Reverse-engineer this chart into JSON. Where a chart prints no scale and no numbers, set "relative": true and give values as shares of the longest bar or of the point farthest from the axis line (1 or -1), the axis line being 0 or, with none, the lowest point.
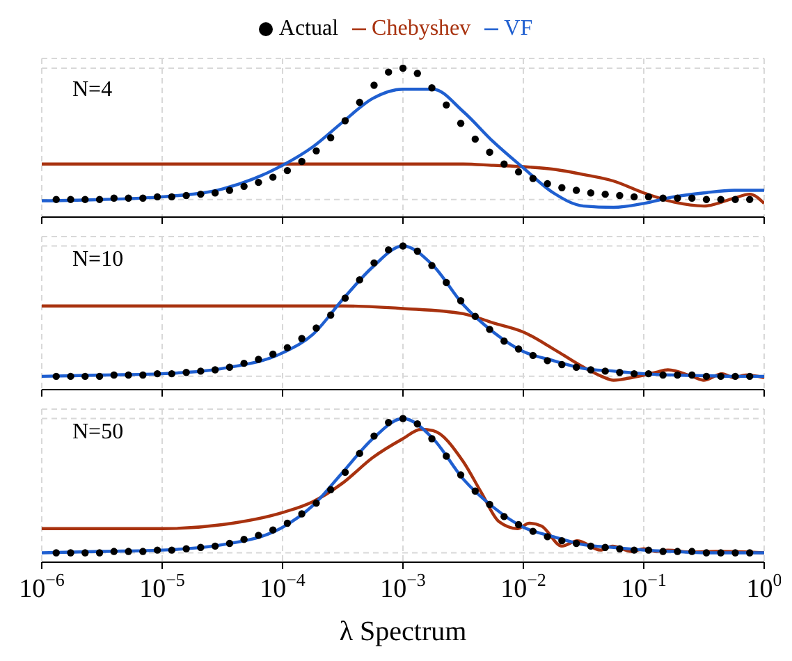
{
  "chart_data": [
    {
      "type": "line",
      "relative": true,
      "annotations": [
        "N=4"
      ],
      "legend": "top",
      "grid": true,
      "tick_labels": false,
      "log": "x",
      "xlim": [
        1e-06,
        1
      ],
      "xticks": [
        {
          "value": 1e-06,
          "label": null
        },
        {
          "value": 1e-05,
          "label": null
        },
        {
          "value": 0.0001,
          "label": null
        },
        {
          "value": 0.001,
          "label": null
        },
        {
          "value": 0.01,
          "label": null
        },
        {
          "value": 0.1,
          "label": null
        },
        {
          "value": 1,
          "label": null
        }
      ],
      "x": [
        1.318e-06,
        1.738e-06,
        2.291e-06,
        3.02e-06,
        3.981e-06,
        5.248e-06,
        6.918e-06,
        9.12e-06,
        1.202e-05,
        1.585e-05,
        2.089e-05,
        2.754e-05,
        3.631e-05,
        4.786e-05,
        6.31e-05,
        8.318e-05,
        0.0001096,
        0.0001445,
        0.0001905,
        0.0002512,
        0.0003311,
        0.0004365,
        0.0005754,
        0.0007586,
        0.001,
        0.001318,
        0.001738,
        0.002291,
        0.00302,
        0.003981,
        0.005248,
        0.006918,
        0.00912,
        0.01202,
        0.01585,
        0.02089,
        0.02754,
        0.03631,
        0.04786,
        0.0631,
        0.08318,
        0.1096,
        0.1445,
        0.1905,
        0.2512,
        0.3311,
        0.4365,
        0.5754,
        0.7586
      ],
      "series": [
        {
          "name": "Actual",
          "type": "scatter",
          "marker": "circle",
          "color": "#000000",
          "values": [
            0,
            0,
            0,
            0,
            0.01,
            0.01,
            0.01,
            0.02,
            0.02,
            0.03,
            0.04,
            0.05,
            0.07,
            0.1,
            0.13,
            0.17,
            0.22,
            0.29,
            0.37,
            0.47,
            0.6,
            0.74,
            0.87,
            0.97,
            1.0,
            0.96,
            0.85,
            0.72,
            0.58,
            0.46,
            0.36,
            0.27,
            0.21,
            0.16,
            0.12,
            0.09,
            0.07,
            0.05,
            0.04,
            0.03,
            0.02,
            0.02,
            0.01,
            0.01,
            0.01,
            0,
            0,
            0,
            0
          ]
        },
        {
          "name": "Chebyshev",
          "type": "line",
          "color": "#a8320f",
          "x": [
            1e-06,
            1e-05,
            0.0001,
            0.001,
            0.003162,
            0.005623,
            0.01,
            0.01778,
            0.03162,
            0.05623,
            0.1,
            0.1778,
            0.3162,
            0.5623,
            0.7586,
            1
          ],
          "values": [
            0.27,
            0.27,
            0.27,
            0.27,
            0.27,
            0.26,
            0.25,
            0.23,
            0.19,
            0.14,
            0.05,
            -0.02,
            -0.05,
            0.01,
            0.04,
            -0.03
          ]
        },
        {
          "name": "VF",
          "type": "line",
          "color": "#1f5fd0",
          "x": [
            1e-06,
            3.162e-06,
            1e-05,
            3.162e-05,
            0.0001,
            0.0001778,
            0.0003162,
            0.0005623,
            0.001,
            0.001778,
            0.003162,
            0.005623,
            0.01,
            0.01778,
            0.03162,
            0.05623,
            0.1,
            0.1778,
            0.3162,
            0.5623,
            1
          ],
          "values": [
            -0.01,
            0,
            0.02,
            0.08,
            0.26,
            0.4,
            0.59,
            0.77,
            0.84,
            0.84,
            0.67,
            0.44,
            0.24,
            0.05,
            -0.05,
            -0.06,
            -0.03,
            0.02,
            0.05,
            0.07,
            0.07
          ]
        }
      ]
    },
    {
      "type": "line",
      "relative": true,
      "annotations": [
        "N=10"
      ],
      "grid": true,
      "tick_labels": false,
      "log": "x",
      "xlim": [
        1e-06,
        1
      ],
      "xticks": [
        {
          "value": 1e-06,
          "label": null
        },
        {
          "value": 1e-05,
          "label": null
        },
        {
          "value": 0.0001,
          "label": null
        },
        {
          "value": 0.001,
          "label": null
        },
        {
          "value": 0.01,
          "label": null
        },
        {
          "value": 0.1,
          "label": null
        },
        {
          "value": 1,
          "label": null
        }
      ],
      "x": [
        1.318e-06,
        1.738e-06,
        2.291e-06,
        3.02e-06,
        3.981e-06,
        5.248e-06,
        6.918e-06,
        9.12e-06,
        1.202e-05,
        1.585e-05,
        2.089e-05,
        2.754e-05,
        3.631e-05,
        4.786e-05,
        6.31e-05,
        8.318e-05,
        0.0001096,
        0.0001445,
        0.0001905,
        0.0002512,
        0.0003311,
        0.0004365,
        0.0005754,
        0.0007586,
        0.001,
        0.001318,
        0.001738,
        0.002291,
        0.00302,
        0.003981,
        0.005248,
        0.006918,
        0.00912,
        0.01202,
        0.01585,
        0.02089,
        0.02754,
        0.03631,
        0.04786,
        0.0631,
        0.08318,
        0.1096,
        0.1445,
        0.1905,
        0.2512,
        0.3311,
        0.4365,
        0.5754,
        0.7586
      ],
      "series": [
        {
          "type": "scatter",
          "marker": "circle",
          "color": "#000000",
          "values": [
            0,
            0,
            0,
            0,
            0.01,
            0.01,
            0.01,
            0.02,
            0.02,
            0.03,
            0.04,
            0.05,
            0.07,
            0.1,
            0.13,
            0.17,
            0.22,
            0.29,
            0.37,
            0.47,
            0.6,
            0.74,
            0.87,
            0.97,
            1.0,
            0.96,
            0.85,
            0.72,
            0.58,
            0.46,
            0.36,
            0.27,
            0.21,
            0.16,
            0.12,
            0.09,
            0.07,
            0.05,
            0.04,
            0.03,
            0.02,
            0.02,
            0.01,
            0.01,
            0.01,
            0,
            0,
            0,
            0
          ]
        },
        {
          "type": "line",
          "color": "#a8320f",
          "x": [
            1e-06,
            1e-05,
            0.0001,
            0.0003162,
            0.001,
            0.003162,
            0.005623,
            0.01,
            0.01778,
            0.03162,
            0.04467,
            0.05623,
            0.07943,
            0.1259,
            0.1585,
            0.2512,
            0.3162,
            0.4467,
            0.5623,
            0.7079,
            1
          ],
          "values": [
            0.54,
            0.54,
            0.54,
            0.54,
            0.52,
            0.48,
            0.41,
            0.34,
            0.21,
            0.07,
            0,
            -0.03,
            -0.01,
            0.03,
            0.05,
            0,
            -0.03,
            0.02,
            -0.01,
            0.01,
            -0.01
          ]
        },
        {
          "type": "line",
          "color": "#1f5fd0",
          "x": [
            1e-06,
            3.162e-06,
            1e-05,
            3.162e-05,
            0.0001,
            0.0001778,
            0.0003162,
            0.0005623,
            0.001,
            0.001778,
            0.003162,
            0.005623,
            0.01,
            0.01778,
            0.03162,
            0.05623,
            0.1,
            0.1778,
            0.3162,
            0.5623,
            1
          ],
          "values": [
            0,
            0.01,
            0.02,
            0.06,
            0.18,
            0.32,
            0.59,
            0.84,
            1.0,
            0.85,
            0.55,
            0.34,
            0.19,
            0.12,
            0.06,
            0.04,
            0.02,
            0.01,
            0.005,
            0,
            0
          ]
        }
      ]
    },
    {
      "type": "line",
      "relative": true,
      "annotations": [
        "N=50"
      ],
      "grid": true,
      "tick_labels": "x",
      "log": "x",
      "xlim": [
        1e-06,
        1
      ],
      "xlabel": "λ Spectrum",
      "xticks": [
        {
          "value": 1e-06,
          "label": "10$^{−6}$"
        },
        {
          "value": 1e-05,
          "label": "10$^{−5}$"
        },
        {
          "value": 0.0001,
          "label": "10$^{−4}$"
        },
        {
          "value": 0.001,
          "label": "10$^{−3}$"
        },
        {
          "value": 0.01,
          "label": "10$^{−2}$"
        },
        {
          "value": 0.1,
          "label": "10$^{−1}$"
        },
        {
          "value": 1,
          "label": "10$^{0}$"
        }
      ],
      "x": [
        1.318e-06,
        1.738e-06,
        2.291e-06,
        3.02e-06,
        3.981e-06,
        5.248e-06,
        6.918e-06,
        9.12e-06,
        1.202e-05,
        1.585e-05,
        2.089e-05,
        2.754e-05,
        3.631e-05,
        4.786e-05,
        6.31e-05,
        8.318e-05,
        0.0001096,
        0.0001445,
        0.0001905,
        0.0002512,
        0.0003311,
        0.0004365,
        0.0005754,
        0.0007586,
        0.001,
        0.001318,
        0.001738,
        0.002291,
        0.00302,
        0.003981,
        0.005248,
        0.006918,
        0.00912,
        0.01202,
        0.01585,
        0.02089,
        0.02754,
        0.03631,
        0.04786,
        0.0631,
        0.08318,
        0.1096,
        0.1445,
        0.1905,
        0.2512,
        0.3311,
        0.4365,
        0.5754,
        0.7586
      ],
      "series": [
        {
          "type": "scatter",
          "marker": "circle",
          "color": "#000000",
          "values": [
            0,
            0,
            0,
            0,
            0.01,
            0.01,
            0.01,
            0.02,
            0.02,
            0.03,
            0.04,
            0.05,
            0.07,
            0.1,
            0.13,
            0.17,
            0.22,
            0.29,
            0.37,
            0.47,
            0.6,
            0.74,
            0.87,
            0.97,
            1.0,
            0.96,
            0.85,
            0.72,
            0.58,
            0.46,
            0.36,
            0.27,
            0.21,
            0.16,
            0.12,
            0.09,
            0.07,
            0.05,
            0.04,
            0.03,
            0.02,
            0.02,
            0.01,
            0.01,
            0.01,
            0,
            0,
            0,
            0
          ]
        },
        {
          "type": "line",
          "color": "#a8320f",
          "x": [
            1e-06,
            1e-05,
            3.162e-05,
            0.0001,
            0.0001778,
            0.0003162,
            0.0005623,
            0.001,
            0.001413,
            0.001778,
            0.003162,
            0.004467,
            0.00631,
            0.008913,
            0.01122,
            0.01413,
            0.02089,
            0.02818,
            0.04365,
            0.05495,
            0.07943,
            0.1,
            0.1259,
            0.1585,
            0.2512,
            0.3981,
            1
          ],
          "values": [
            0.18,
            0.18,
            0.21,
            0.3,
            0.38,
            0.52,
            0.71,
            0.85,
            0.92,
            0.91,
            0.68,
            0.45,
            0.23,
            0.18,
            0.22,
            0.2,
            0.05,
            0.09,
            0.02,
            0.05,
            0.01,
            0.03,
            0.01,
            0.02,
            0.005,
            0.01,
            0
          ]
        },
        {
          "type": "line",
          "color": "#1f5fd0",
          "x": [
            1e-06,
            3.162e-06,
            1e-05,
            3.162e-05,
            0.0001,
            0.0001778,
            0.0003162,
            0.0005623,
            0.001,
            0.001778,
            0.003162,
            0.005623,
            0.01,
            0.01778,
            0.03162,
            0.05623,
            0.1,
            0.1778,
            0.3162,
            0.5623,
            1
          ],
          "values": [
            0,
            0.01,
            0.02,
            0.06,
            0.19,
            0.35,
            0.6,
            0.85,
            1.0,
            0.85,
            0.55,
            0.34,
            0.19,
            0.12,
            0.06,
            0.04,
            0.02,
            0.01,
            0,
            0,
            0
          ]
        }
      ]
    }
  ]
}
